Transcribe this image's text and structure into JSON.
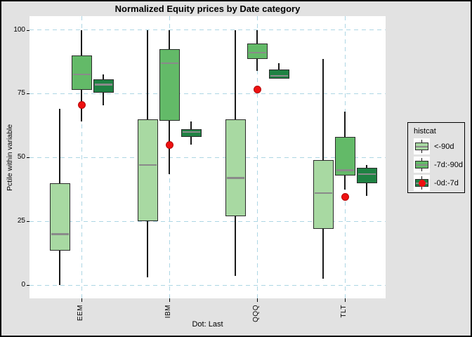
{
  "figure": {
    "background": "#E2E2E2",
    "border_color": "#000000"
  },
  "chart_data": {
    "type": "boxplot",
    "title": "Normalized Equity prices by Date category",
    "xlabel": "Dot: Last",
    "ylabel": "Pctile within variable",
    "ylim": [
      0,
      100
    ],
    "yticks": [
      0,
      25,
      50,
      75,
      100
    ],
    "grid": {
      "show": true,
      "style": "dashed",
      "color": "#ADD6E4"
    },
    "panel_background": "#FFFFFF",
    "categories": [
      "EEM",
      "IBM",
      "QQQ",
      "TLT"
    ],
    "series": [
      {
        "name": "<-90d",
        "color": "#A8D9A2",
        "boxes": [
          {
            "category": "EEM",
            "low": 0,
            "q1": 13.5,
            "median": 20,
            "q3": 40,
            "high": 69
          },
          {
            "category": "IBM",
            "low": 3,
            "q1": 25,
            "median": 47,
            "q3": 65,
            "high": 100
          },
          {
            "category": "QQQ",
            "low": 3.5,
            "q1": 27,
            "median": 42,
            "q3": 65,
            "high": 100
          },
          {
            "category": "TLT",
            "low": 2.5,
            "q1": 22,
            "median": 36,
            "q3": 49,
            "high": 88.5
          }
        ]
      },
      {
        "name": "-7d:-90d",
        "color": "#63BA68",
        "boxes": [
          {
            "category": "EEM",
            "low": 64,
            "q1": 76.5,
            "median": 82.5,
            "q3": 90,
            "high": 100
          },
          {
            "category": "IBM",
            "low": 43.5,
            "q1": 64.5,
            "median": 87,
            "q3": 92.5,
            "high": 100
          },
          {
            "category": "QQQ",
            "low": 84,
            "q1": 88.5,
            "median": 91,
            "q3": 94.5,
            "high": 100
          },
          {
            "category": "TLT",
            "low": 37.5,
            "q1": 43,
            "median": 45,
            "q3": 58,
            "high": 68
          }
        ]
      },
      {
        "name": "-0d:-7d",
        "color": "#1F8243",
        "boxes": [
          {
            "category": "EEM",
            "low": 70.5,
            "q1": 75.5,
            "median": 78.5,
            "q3": 80.5,
            "high": 82.5
          },
          {
            "category": "IBM",
            "low": 55,
            "q1": 58,
            "median": 60,
            "q3": 61,
            "high": 64
          },
          {
            "category": "QQQ",
            "low": 81,
            "q1": 81,
            "median": 82,
            "q3": 84.5,
            "high": 87
          },
          {
            "category": "TLT",
            "low": 35,
            "q1": 40,
            "median": 43.5,
            "q3": 46,
            "high": 47
          }
        ]
      }
    ],
    "dots": {
      "label": "Last",
      "color": "#EE1111",
      "values": [
        70.5,
        55,
        76.5,
        34.5
      ]
    },
    "legend": {
      "title": "histcat",
      "position": "right",
      "entries": [
        {
          "label": "<-90d",
          "color": "#A8D9A2",
          "has_dot": false
        },
        {
          "label": "-7d:-90d",
          "color": "#63BA68",
          "has_dot": false
        },
        {
          "label": "-0d:-7d",
          "color": "#1F8243",
          "has_dot": true
        }
      ]
    },
    "style": {
      "box_stroke": "#2B2B2B",
      "whisker_color": "#1A1A1A",
      "median_color": "#8A8A8A"
    }
  }
}
